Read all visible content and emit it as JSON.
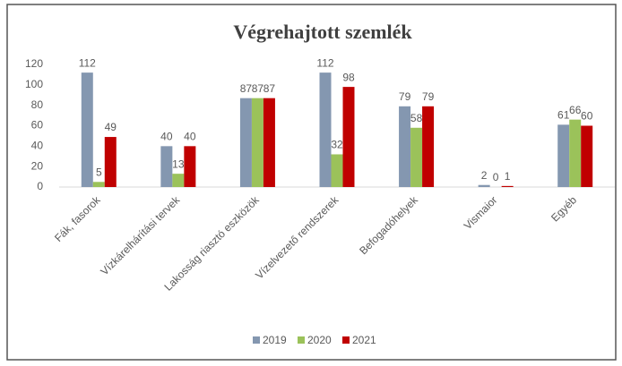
{
  "chart_data": {
    "type": "bar",
    "title": "Végrehajtott szemlék",
    "categories": [
      "Fák, fasorok",
      "Vízkárelhárítási tervek",
      "Lakosság riasztó eszközök",
      "Vízelvezető rendszerek",
      "Befogadóhelyek",
      "Vismaior",
      "Egyéb"
    ],
    "series": [
      {
        "name": "2019",
        "color": "#8497b0",
        "values": [
          112,
          40,
          87,
          112,
          79,
          2,
          61
        ]
      },
      {
        "name": "2020",
        "color": "#9bc25a",
        "values": [
          5,
          13,
          87,
          32,
          58,
          0,
          66
        ]
      },
      {
        "name": "2021",
        "color": "#c00000",
        "values": [
          49,
          40,
          87,
          98,
          79,
          1,
          60
        ]
      }
    ],
    "ylim": [
      0,
      120
    ],
    "yticks": [
      0,
      20,
      40,
      60,
      80,
      100,
      120
    ],
    "grid": false,
    "legend": "bottom"
  }
}
